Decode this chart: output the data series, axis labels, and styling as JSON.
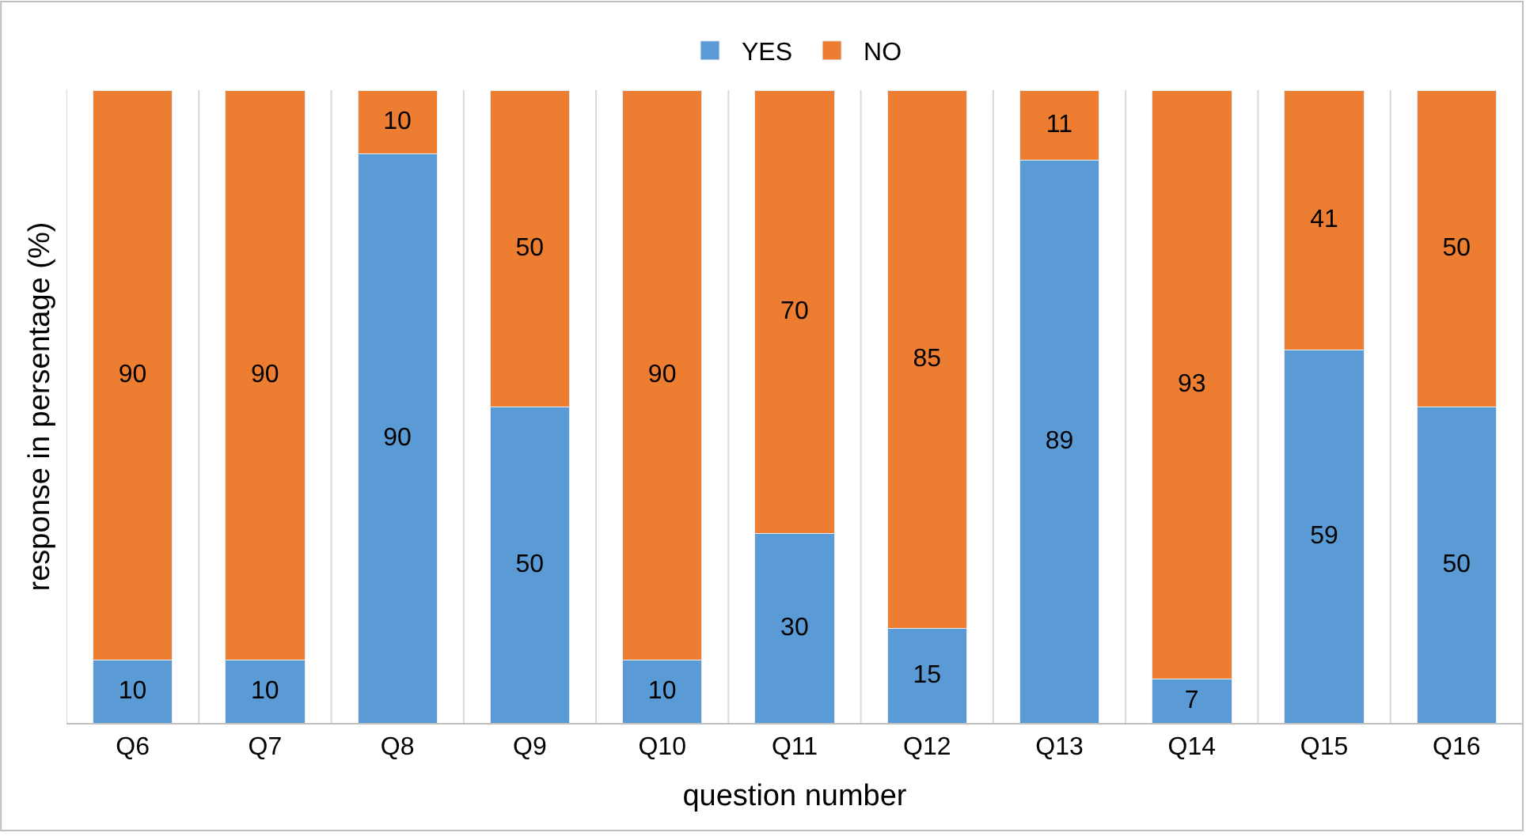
{
  "chart_data": {
    "type": "bar",
    "stacked": true,
    "xlabel": "question number",
    "ylabel": "response in persentage (%)",
    "categories": [
      "Q6",
      "Q7",
      "Q8",
      "Q9",
      "Q10",
      "Q11",
      "Q12",
      "Q13",
      "Q14",
      "Q15",
      "Q16"
    ],
    "series": [
      {
        "name": "YES",
        "color": "#5b9bd5",
        "values": [
          10,
          10,
          90,
          50,
          10,
          30,
          15,
          89,
          7,
          59,
          50
        ]
      },
      {
        "name": "NO",
        "color": "#ed7d31",
        "values": [
          90,
          90,
          10,
          50,
          90,
          70,
          85,
          11,
          93,
          41,
          50
        ]
      }
    ],
    "data_labels": true,
    "legend": "top",
    "grid": "x"
  }
}
